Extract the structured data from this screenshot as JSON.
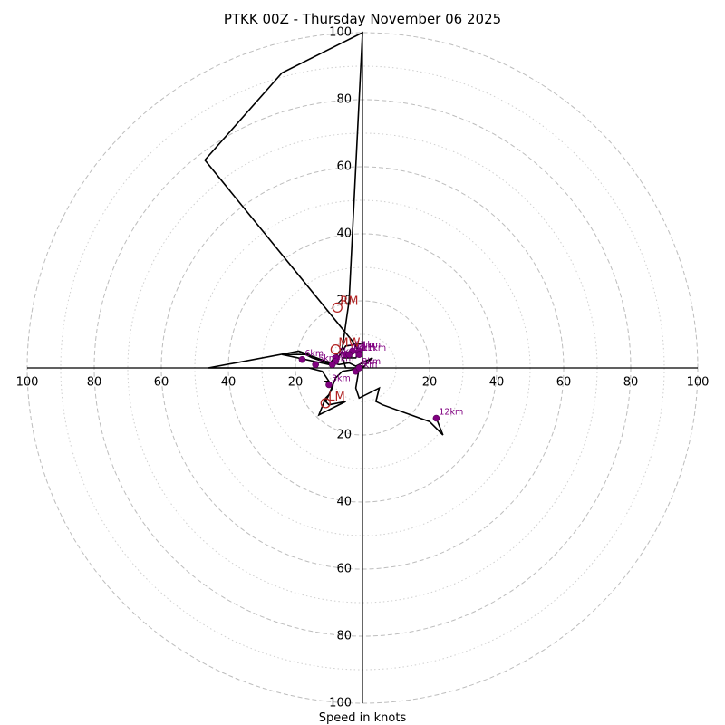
{
  "chart_data": {
    "type": "hodograph",
    "title": "PTKK 00Z - Thursday November 06 2025",
    "xlabel": "Speed in knots",
    "range": 100,
    "ring_major": [
      20,
      40,
      60,
      80,
      100
    ],
    "ring_minor": [
      10,
      30,
      50,
      70,
      90
    ],
    "tick_labels": {
      "top": [
        "20",
        "40",
        "60",
        "80",
        "100"
      ],
      "bottom": [
        "20",
        "40",
        "60",
        "80",
        "100"
      ],
      "left": [
        "20",
        "40",
        "60",
        "80",
        "100"
      ],
      "right": [
        "20",
        "40",
        "60",
        "80",
        "100"
      ]
    },
    "hodograph_uv": [
      [
        0.5,
        7.5
      ],
      [
        -2,
        7
      ],
      [
        -5,
        6.5
      ],
      [
        -7,
        3.5
      ],
      [
        -9,
        1
      ],
      [
        -15,
        3
      ],
      [
        -19,
        5
      ],
      [
        -11,
        2
      ],
      [
        -7,
        1
      ],
      [
        -4,
        1.5
      ],
      [
        -2,
        0.5
      ],
      [
        0,
        1.5
      ],
      [
        3,
        3
      ],
      [
        0,
        0
      ],
      [
        -6,
        -1
      ],
      [
        -8,
        -3
      ],
      [
        -10,
        -8
      ],
      [
        -11,
        -9
      ],
      [
        -13,
        -14
      ],
      [
        -5,
        -10
      ],
      [
        -10,
        -11
      ],
      [
        -11,
        -10
      ],
      [
        -9,
        -6
      ],
      [
        -11,
        -4
      ],
      [
        -10,
        -4
      ],
      [
        -12,
        -1
      ],
      [
        -16,
        0
      ],
      [
        -46,
        0
      ],
      [
        -19,
        5
      ],
      [
        -16,
        4
      ],
      [
        -24,
        4
      ],
      [
        -10,
        1
      ],
      [
        -6,
        6
      ],
      [
        -4,
        20
      ],
      [
        0,
        100
      ],
      [
        -24,
        88
      ],
      [
        -47,
        62
      ],
      [
        -3,
        8
      ],
      [
        -1,
        5
      ],
      [
        -2,
        3
      ],
      [
        -4,
        3
      ],
      [
        -6,
        3
      ],
      [
        -5,
        0
      ],
      [
        -1,
        0
      ],
      [
        -2,
        -6
      ],
      [
        -1,
        -9
      ],
      [
        5,
        -6
      ],
      [
        4,
        -10
      ],
      [
        6,
        -11
      ],
      [
        20,
        -16
      ],
      [
        24,
        -20
      ],
      [
        22,
        -15
      ]
    ],
    "height_markers": [
      {
        "label": "1km",
        "u": -1,
        "v": 5
      },
      {
        "label": "1km",
        "u": -3,
        "v": 5
      },
      {
        "label": "2km",
        "u": -5,
        "v": 4
      },
      {
        "label": "2km",
        "u": -8,
        "v": 3
      },
      {
        "label": "3km",
        "u": -10,
        "v": -5
      },
      {
        "label": "4km",
        "u": -2,
        "v": -1
      },
      {
        "label": "5km",
        "u": -14,
        "v": 1
      },
      {
        "label": "6km",
        "u": -18,
        "v": 2.5
      },
      {
        "label": "7km",
        "u": -8,
        "v": 2
      },
      {
        "label": "8km",
        "u": -1,
        "v": 0
      },
      {
        "label": "9km",
        "u": -9,
        "v": 1
      },
      {
        "label": "10km",
        "u": -4,
        "v": 4
      },
      {
        "label": "11km",
        "u": -1,
        "v": 4
      },
      {
        "label": "12km",
        "u": 22,
        "v": -15
      }
    ],
    "storm_motion": [
      {
        "label": "RM",
        "u": -7.5,
        "v": 18
      },
      {
        "label": "LM",
        "u": -11,
        "v": -10.5
      },
      {
        "label": "MW",
        "u": -8,
        "v": 5.5
      }
    ]
  }
}
